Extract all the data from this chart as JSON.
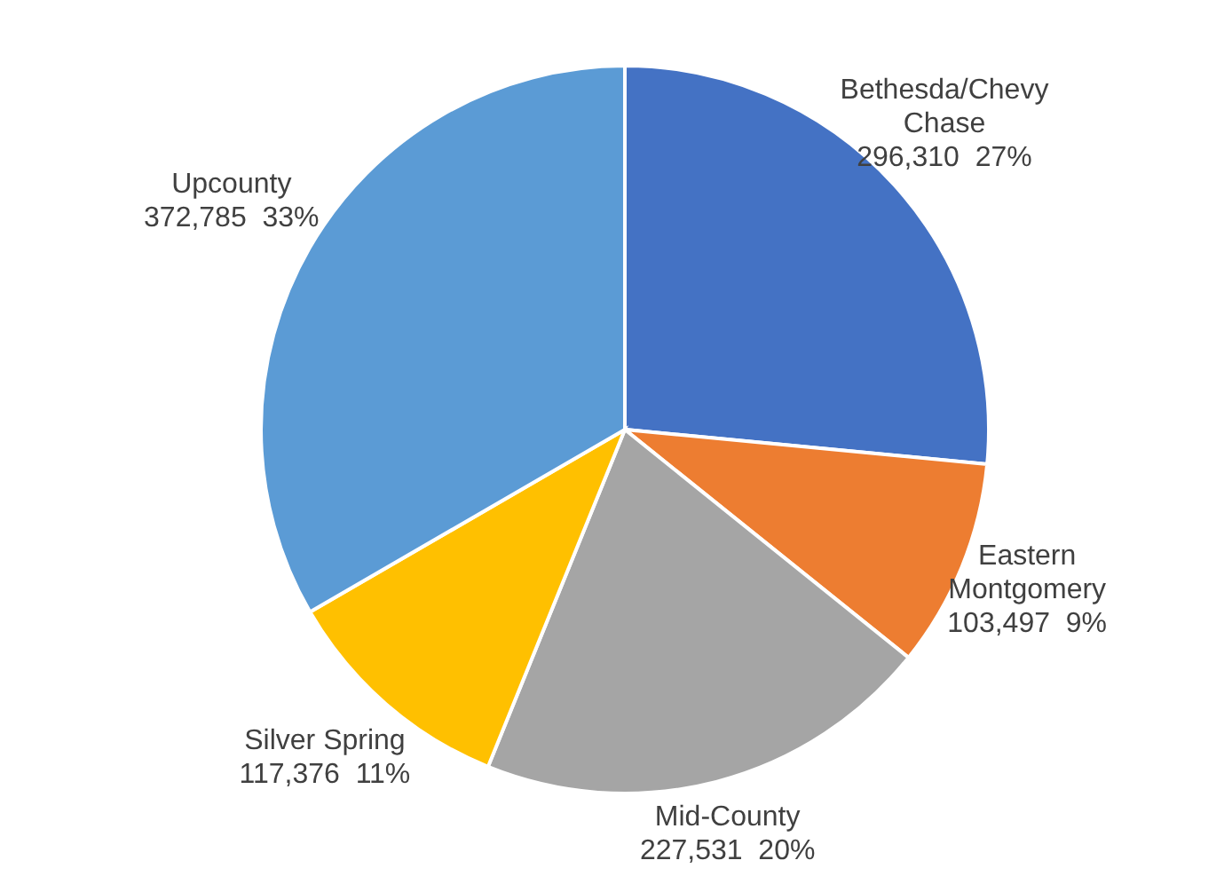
{
  "chart_data": {
    "type": "pie",
    "categories": [
      "Bethesda/Chevy Chase",
      "Eastern Montgomery",
      "Mid-County",
      "Silver Spring",
      "Upcounty"
    ],
    "values": [
      296310,
      103497,
      227531,
      117376,
      372785
    ],
    "value_labels": [
      "296,310  27%",
      "103,497  9%",
      "227,531  20%",
      "117,376  11%",
      "372,785  33%"
    ],
    "colors": [
      "#4472c4",
      "#ed7d31",
      "#a5a5a5",
      "#ffc000",
      "#5b9bd5"
    ],
    "legend": false
  }
}
